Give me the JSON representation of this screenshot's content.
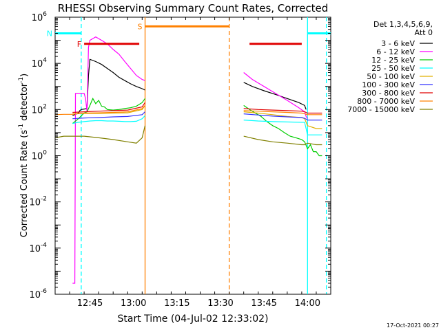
{
  "chart_data": {
    "type": "line",
    "title": "RHESSI Observing Summary Count Rates, Corrected",
    "xlabel": "Start Time (04-Jul-02 12:33:02)",
    "ylabel_main": "Corrected Count Rate (s",
    "ylabel_sup1": "-1",
    "ylabel_mid": " detector",
    "ylabel_sup2": "-1",
    "ylabel_end": ")",
    "ylog": true,
    "ylim": [
      1e-06,
      1000000.0
    ],
    "xlim_min": [
      0,
      95
    ],
    "grid": false,
    "x_ticks": [
      {
        "t": 12,
        "label": "12:45"
      },
      {
        "t": 27,
        "label": "13:00"
      },
      {
        "t": 42,
        "label": "13:15"
      },
      {
        "t": 57,
        "label": "13:30"
      },
      {
        "t": 72,
        "label": "13:45"
      },
      {
        "t": 87,
        "label": "14:00"
      }
    ],
    "y_ticks": [
      {
        "exp": -6,
        "base": "10",
        "sup": "-6"
      },
      {
        "exp": -4,
        "base": "10",
        "sup": "-4"
      },
      {
        "exp": -2,
        "base": "10",
        "sup": "-2"
      },
      {
        "exp": 0,
        "base": "10",
        "sup": "0"
      },
      {
        "exp": 2,
        "base": "10",
        "sup": "2"
      },
      {
        "exp": 4,
        "base": "10",
        "sup": "4"
      },
      {
        "exp": 6,
        "base": "10",
        "sup": "6"
      }
    ],
    "legend_header": [
      "Det 1,3,4,5,6,9,",
      "Att 0"
    ],
    "legend_position": "right",
    "series": [
      {
        "name": "3 - 6 keV",
        "color": "#000000",
        "x": [
          6,
          8,
          8.5,
          9,
          10,
          11,
          11.5,
          12,
          14,
          16,
          18,
          20,
          22,
          24,
          26,
          28,
          30,
          31,
          65,
          68,
          72,
          76,
          80,
          84,
          86,
          86.5
        ],
        "y": [
          55,
          70,
          90,
          100,
          105,
          110,
          3000,
          15000,
          12000,
          9000,
          6000,
          4000,
          2500,
          1800,
          1300,
          1000,
          800,
          700,
          1500,
          1000,
          650,
          450,
          300,
          200,
          150,
          100
        ]
      },
      {
        "name": "6 - 12 keV",
        "color": "#ff00ff",
        "x": [
          6,
          6.8,
          7,
          7.5,
          8,
          10,
          10.5,
          11,
          11.5,
          12,
          14,
          16,
          18,
          20,
          22,
          24,
          26,
          28,
          30,
          31,
          65,
          68,
          72,
          76,
          80,
          84,
          86,
          86.5,
          87
        ],
        "y": [
          3e-06,
          3e-06,
          500,
          500,
          500,
          500,
          300,
          80,
          50000,
          100000,
          140000,
          100000,
          70000,
          40000,
          25000,
          12000,
          6000,
          3000,
          2000,
          1800,
          4000,
          2000,
          1000,
          500,
          250,
          120,
          80,
          50,
          40
        ]
      },
      {
        "name": "12 - 25 keV",
        "color": "#00cc00",
        "x": [
          6,
          8,
          10,
          11,
          12,
          13,
          14,
          15,
          16,
          17,
          18,
          20,
          22,
          24,
          26,
          28,
          30,
          31,
          65,
          67,
          69,
          71,
          73,
          75,
          77,
          79,
          81,
          83,
          85,
          86,
          87,
          88,
          89,
          90,
          91,
          92
        ],
        "y": [
          25,
          40,
          70,
          80,
          150,
          300,
          180,
          250,
          140,
          130,
          100,
          95,
          100,
          110,
          120,
          140,
          200,
          300,
          150,
          100,
          70,
          50,
          30,
          20,
          15,
          10,
          7,
          6,
          5,
          4,
          2,
          3,
          1.5,
          1.5,
          1,
          1
        ]
      },
      {
        "name": "25 - 50 keV",
        "color": "#00ffff",
        "x": [
          6,
          8,
          10,
          12,
          14,
          16,
          18,
          20,
          22,
          24,
          26,
          28,
          30,
          31,
          65,
          70,
          75,
          80,
          85,
          86,
          87,
          90,
          92
        ],
        "y": [
          25,
          28,
          30,
          32,
          33,
          33,
          32,
          32,
          31,
          30,
          30,
          31,
          40,
          55,
          35,
          32,
          30,
          29,
          28,
          28,
          8,
          8,
          8
        ]
      },
      {
        "name": "50 - 100 keV",
        "color": "#e0b000",
        "x": [
          6,
          10,
          15,
          20,
          25,
          30,
          31,
          65,
          70,
          75,
          80,
          85,
          86,
          87,
          90,
          92
        ],
        "y": [
          65,
          68,
          68,
          70,
          72,
          100,
          150,
          80,
          70,
          60,
          50,
          45,
          40,
          20,
          15,
          15
        ]
      },
      {
        "name": "100 - 300 keV",
        "color": "#3333ff",
        "x": [
          6,
          10,
          15,
          20,
          25,
          30,
          31,
          65,
          70,
          75,
          80,
          85,
          86,
          87,
          90,
          92
        ],
        "y": [
          40,
          43,
          45,
          48,
          50,
          60,
          80,
          65,
          58,
          52,
          48,
          45,
          42,
          35,
          35,
          35
        ]
      },
      {
        "name": "300 - 800 keV",
        "color": "#e00000",
        "x": [
          6,
          10,
          15,
          20,
          25,
          30,
          31,
          65,
          70,
          75,
          80,
          85,
          86,
          87,
          90,
          92
        ],
        "y": [
          75,
          80,
          85,
          90,
          95,
          130,
          200,
          110,
          100,
          95,
          90,
          85,
          80,
          70,
          70,
          70
        ]
      },
      {
        "name": "800 - 7000 keV",
        "color": "#ff8000",
        "x": [
          0,
          3,
          6,
          10,
          15,
          20,
          25,
          30,
          31,
          65,
          70,
          75,
          80,
          85,
          86,
          87,
          90,
          92
        ],
        "y": [
          60,
          62,
          62,
          70,
          72,
          75,
          80,
          110,
          150,
          90,
          85,
          80,
          75,
          70,
          65,
          60,
          60,
          60
        ]
      },
      {
        "name": "7000 - 15000 keV",
        "color": "#808000",
        "x": [
          0,
          3,
          6,
          10,
          15,
          20,
          25,
          28,
          30,
          31,
          65,
          70,
          75,
          80,
          85,
          86,
          87,
          90,
          92
        ],
        "y": [
          6,
          7,
          7,
          7,
          6,
          5,
          4,
          3.5,
          6,
          20,
          7,
          5,
          4,
          3.5,
          3,
          3,
          3.5,
          3,
          3
        ]
      }
    ],
    "annotations": [
      {
        "label": "F",
        "kind": "bar",
        "color": "#e00000",
        "x_start": 10,
        "x_end": 29,
        "y": 70000
      },
      {
        "label": "",
        "kind": "bar",
        "color": "#e00000",
        "x_start": 67,
        "x_end": 85,
        "y": 70000
      },
      {
        "label": "N",
        "kind": "bar",
        "color": "#00ffff",
        "x_start": 0,
        "x_end": 9,
        "y": 200000
      },
      {
        "label": "",
        "kind": "bar",
        "color": "#00ffff",
        "x_start": 87,
        "x_end": 95,
        "y": 200000
      },
      {
        "label": "S",
        "kind": "bar",
        "color": "#ff8000",
        "x_start": 31,
        "x_end": 60,
        "y": 400000
      }
    ],
    "vlines": [
      {
        "x": 9,
        "color": "#00ffff",
        "dashed": true
      },
      {
        "x": 87,
        "color": "#00ffff",
        "dashed": false
      },
      {
        "x": 93.5,
        "color": "#00ffff",
        "dashed": true
      },
      {
        "x": 31,
        "color": "#ff8000",
        "dashed": false
      },
      {
        "x": 60,
        "color": "#ff8000",
        "dashed": true
      }
    ]
  },
  "footer_date": "17-Oct-2021 00:27"
}
